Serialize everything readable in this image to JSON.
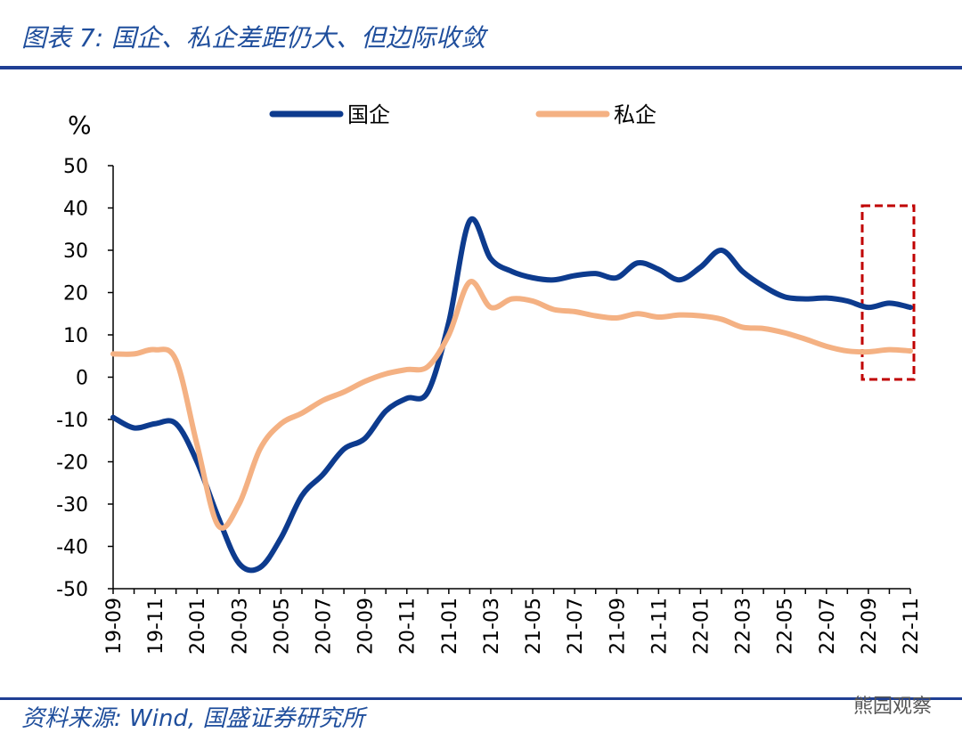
{
  "chart_data": {
    "type": "line",
    "title": "图表 7: 国企、私企差距仍大、但边际收敛",
    "y_axis_label": "%",
    "source": "资料来源: Wind, 国盛证券研究所",
    "watermark": "熊园观察",
    "categories": [
      "19-09",
      null,
      "19-11",
      null,
      "20-01",
      null,
      "20-03",
      null,
      "20-05",
      null,
      "20-07",
      null,
      "20-09",
      null,
      "20-11",
      null,
      "21-01",
      null,
      "21-03",
      null,
      "21-05",
      null,
      "21-07",
      null,
      "21-09",
      null,
      "21-11",
      null,
      "22-01",
      null,
      "22-03",
      null,
      "22-05",
      null,
      "22-07",
      null,
      "22-09",
      null,
      "22-11"
    ],
    "series": [
      {
        "name": "国企",
        "color": "#0d3b8e",
        "values": [
          -9.5,
          -12,
          -11,
          -11,
          -20,
          -33,
          -44,
          -45,
          -38,
          -28,
          -23,
          -17,
          -14.5,
          -8,
          -5,
          -3.5,
          13,
          37,
          28,
          25,
          23.5,
          23,
          24,
          24.5,
          23.5,
          27,
          25.5,
          23,
          26,
          30,
          25,
          21.5,
          19,
          18.5,
          18.7,
          18,
          16.5,
          17.5,
          16.5
        ]
      },
      {
        "name": "私企",
        "color": "#f4b183",
        "values": [
          5.5,
          5.5,
          6.5,
          4,
          -16,
          -35,
          -30,
          -17,
          -11,
          -8.5,
          -5.5,
          -3.5,
          -1,
          0.8,
          1.8,
          2.5,
          10,
          22.5,
          16.5,
          18.5,
          18,
          16,
          15.5,
          14.5,
          14,
          15,
          14.2,
          14.7,
          14.5,
          13.7,
          11.8,
          11.5,
          10.5,
          9,
          7.3,
          6.2,
          6,
          6.5,
          6.2
        ]
      }
    ],
    "ylim": [
      -50,
      50
    ],
    "yticks": [
      -50,
      -40,
      -30,
      -20,
      -10,
      0,
      10,
      20,
      30,
      40,
      50
    ],
    "legend": "top"
  }
}
